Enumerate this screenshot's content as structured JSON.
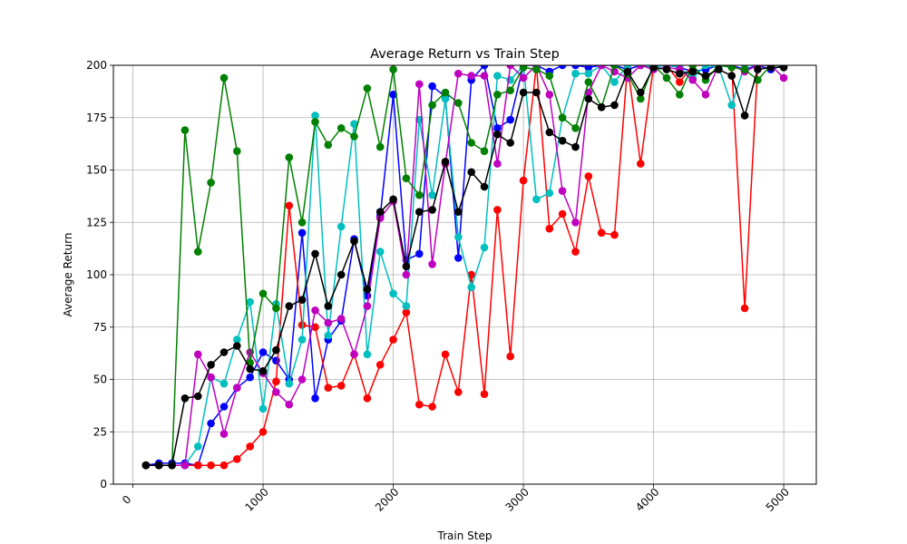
{
  "chart_data": {
    "type": "line",
    "title": "Average Return vs Train Step",
    "xlabel": "Train Step",
    "ylabel": "Average Return",
    "xlim": [
      -150,
      5250
    ],
    "ylim": [
      0,
      200
    ],
    "x_ticks": [
      0,
      1000,
      2000,
      3000,
      4000,
      5000
    ],
    "y_ticks": [
      0,
      25,
      50,
      75,
      100,
      125,
      150,
      175,
      200
    ],
    "grid": true,
    "x": [
      100,
      200,
      300,
      400,
      500,
      600,
      700,
      800,
      900,
      1000,
      1100,
      1200,
      1300,
      1400,
      1500,
      1600,
      1700,
      1800,
      1900,
      2000,
      2100,
      2200,
      2300,
      2400,
      2500,
      2600,
      2700,
      2800,
      2900,
      3000,
      3100,
      3200,
      3300,
      3400,
      3500,
      3600,
      3700,
      3800,
      3900,
      4000,
      4100,
      4200,
      4300,
      4400,
      4500,
      4600,
      4700,
      4800,
      4900,
      5000
    ],
    "series": [
      {
        "color": "#0000ff",
        "values": [
          9,
          10,
          10,
          10,
          9,
          29,
          37,
          46,
          51,
          63,
          59,
          50,
          120,
          41,
          69,
          78,
          117,
          90,
          128,
          186,
          107,
          110,
          190,
          185,
          108,
          193,
          200,
          170,
          174,
          200,
          200,
          197,
          200,
          200,
          199,
          200,
          200,
          198,
          200,
          200,
          200,
          199,
          197,
          198,
          200,
          200,
          198,
          200,
          198,
          200
        ]
      },
      {
        "color": "#ff0000",
        "values": [
          9,
          9,
          9,
          9,
          9,
          9,
          9,
          12,
          18,
          25,
          49,
          133,
          76,
          75,
          46,
          47,
          62,
          41,
          57,
          69,
          82,
          38,
          37,
          62,
          44,
          100,
          43,
          131,
          61,
          145,
          200,
          122,
          129,
          111,
          147,
          120,
          119,
          200,
          153,
          200,
          200,
          192,
          200,
          200,
          200,
          200,
          84,
          200,
          200,
          200
        ]
      },
      {
        "color": "#00bfbf",
        "values": [
          9,
          9,
          9,
          9,
          18,
          51,
          48,
          69,
          87,
          36,
          86,
          48,
          69,
          176,
          71,
          123,
          172,
          62,
          111,
          91,
          85,
          174,
          138,
          184,
          118,
          94,
          113,
          195,
          193,
          200,
          136,
          139,
          175,
          196,
          196,
          200,
          192,
          200,
          200,
          199,
          200,
          199,
          194,
          200,
          199,
          181,
          200,
          200,
          200,
          200
        ]
      },
      {
        "color": "#bf00bf",
        "values": [
          9,
          9,
          9,
          9,
          62,
          51,
          24,
          46,
          63,
          53,
          44,
          38,
          50,
          83,
          77,
          79,
          62,
          85,
          127,
          135,
          100,
          191,
          105,
          153,
          196,
          195,
          195,
          153,
          200,
          194,
          200,
          186,
          140,
          125,
          187,
          200,
          197,
          194,
          200,
          198,
          199,
          198,
          193,
          186,
          200,
          200,
          197,
          200,
          200,
          194
        ]
      },
      {
        "color": "#008000",
        "values": [
          9,
          9,
          9,
          169,
          111,
          144,
          194,
          159,
          58,
          91,
          84,
          156,
          125,
          173,
          162,
          170,
          166,
          189,
          161,
          198,
          146,
          138,
          181,
          187,
          182,
          163,
          159,
          186,
          188,
          199,
          198,
          195,
          175,
          170,
          192,
          180,
          200,
          196,
          184,
          200,
          194,
          186,
          200,
          193,
          200,
          199,
          198,
          193,
          200,
          200
        ]
      },
      {
        "color": "#000000",
        "values": [
          9,
          9,
          9,
          41,
          42,
          57,
          63,
          66,
          55,
          54,
          64,
          85,
          88,
          110,
          85,
          100,
          116,
          93,
          130,
          136,
          104,
          130,
          131,
          154,
          130,
          149,
          142,
          167,
          163,
          187,
          187,
          168,
          164,
          161,
          184,
          180,
          181,
          197,
          187,
          199,
          198,
          196,
          197,
          195,
          198,
          195,
          176,
          198,
          199,
          199
        ]
      }
    ]
  }
}
